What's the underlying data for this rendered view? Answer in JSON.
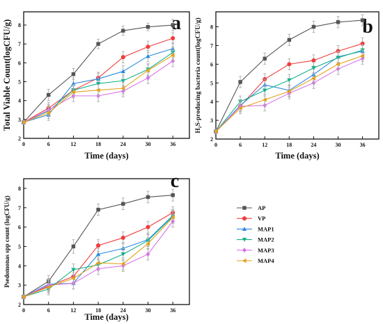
{
  "colors": {
    "AP": "#555555",
    "VP": "#f03c3c",
    "MAP1": "#2a8ae0",
    "MAP2": "#18b08a",
    "MAP3": "#d873e8",
    "MAP4": "#e3a21a"
  },
  "legend": [
    {
      "name": "AP",
      "marker": "square"
    },
    {
      "name": "VP",
      "marker": "circle"
    },
    {
      "name": "MAP1",
      "marker": "triangle-up"
    },
    {
      "name": "MAP2",
      "marker": "triangle-down"
    },
    {
      "name": "MAP3",
      "marker": "diamond"
    },
    {
      "name": "MAP4",
      "marker": "triangle-left"
    }
  ],
  "chart_data": [
    {
      "type": "line",
      "panel_label": "a",
      "xlabel": "Time (days)",
      "ylabel": "Total Viable Count(logCFU/g)",
      "x": [
        0,
        6,
        12,
        18,
        24,
        30,
        36
      ],
      "xticks": [
        "0",
        "6",
        "12",
        "18",
        "24",
        "30",
        "36"
      ],
      "yticks": [
        "2",
        "3",
        "4",
        "5",
        "6",
        "7",
        "8"
      ],
      "xlim": [
        0,
        40
      ],
      "ylim": [
        2,
        8.7
      ],
      "error_bars": true,
      "series": [
        {
          "name": "AP",
          "values": [
            2.85,
            4.3,
            5.4,
            7.0,
            7.7,
            7.9,
            8.0
          ],
          "err": [
            0.1,
            0.3,
            0.3,
            0.25,
            0.25,
            0.2,
            0.3
          ]
        },
        {
          "name": "VP",
          "values": [
            2.85,
            3.6,
            4.55,
            5.2,
            6.3,
            6.85,
            7.3
          ],
          "err": [
            0.1,
            0.3,
            0.3,
            0.3,
            0.3,
            0.3,
            0.3
          ]
        },
        {
          "name": "MAP1",
          "values": [
            2.85,
            3.25,
            4.9,
            5.15,
            5.55,
            6.35,
            6.75
          ],
          "err": [
            0.1,
            0.3,
            0.3,
            0.3,
            0.3,
            0.3,
            0.3
          ]
        },
        {
          "name": "MAP2",
          "values": [
            2.85,
            3.45,
            4.55,
            4.9,
            5.05,
            5.65,
            6.55
          ],
          "err": [
            0.1,
            0.3,
            0.3,
            0.3,
            0.3,
            0.3,
            0.3
          ]
        },
        {
          "name": "MAP3",
          "values": [
            2.85,
            3.5,
            4.25,
            4.25,
            4.5,
            5.2,
            6.1
          ],
          "err": [
            0.1,
            0.3,
            0.3,
            0.3,
            0.3,
            0.3,
            0.3
          ]
        },
        {
          "name": "MAP4",
          "values": [
            2.85,
            3.35,
            4.45,
            4.55,
            4.65,
            5.6,
            6.4
          ],
          "err": [
            0.1,
            0.3,
            0.3,
            0.3,
            0.3,
            0.3,
            0.3
          ]
        }
      ]
    },
    {
      "type": "line",
      "panel_label": "b",
      "xlabel": "Time (days)",
      "ylabel": "H₂S-producing bacteria count(logCFU/g)",
      "x": [
        0,
        6,
        12,
        18,
        24,
        30,
        36
      ],
      "xticks": [
        "0",
        "6",
        "12",
        "18",
        "24",
        "30",
        "36"
      ],
      "yticks": [
        "2",
        "3",
        "4",
        "5",
        "6",
        "7",
        "8"
      ],
      "xlim": [
        0,
        40
      ],
      "ylim": [
        2,
        8.8
      ],
      "error_bars": true,
      "series": [
        {
          "name": "AP",
          "values": [
            2.4,
            5.05,
            6.3,
            7.3,
            8.0,
            8.25,
            8.35
          ],
          "err": [
            0.1,
            0.3,
            0.3,
            0.3,
            0.3,
            0.3,
            0.3
          ]
        },
        {
          "name": "VP",
          "values": [
            2.4,
            3.75,
            5.2,
            6.0,
            6.2,
            6.7,
            7.1
          ],
          "err": [
            0.1,
            0.3,
            0.3,
            0.3,
            0.3,
            0.3,
            0.3
          ]
        },
        {
          "name": "MAP1",
          "values": [
            2.4,
            3.8,
            4.9,
            4.6,
            5.45,
            6.4,
            6.7
          ],
          "err": [
            0.1,
            0.3,
            0.3,
            0.3,
            0.3,
            0.3,
            0.3
          ]
        },
        {
          "name": "MAP2",
          "values": [
            2.4,
            4.0,
            4.6,
            5.15,
            5.8,
            6.35,
            6.75
          ],
          "err": [
            0.1,
            0.3,
            0.3,
            0.3,
            0.3,
            0.3,
            0.3
          ]
        },
        {
          "name": "MAP3",
          "values": [
            2.4,
            3.75,
            3.8,
            4.45,
            5.0,
            5.75,
            6.3
          ],
          "err": [
            0.1,
            0.3,
            0.3,
            0.3,
            0.3,
            0.3,
            0.3
          ]
        },
        {
          "name": "MAP4",
          "values": [
            2.4,
            3.65,
            4.1,
            4.55,
            5.25,
            6.0,
            6.45
          ],
          "err": [
            0.1,
            0.3,
            0.3,
            0.3,
            0.3,
            0.3,
            0.3
          ]
        }
      ]
    },
    {
      "type": "line",
      "panel_label": "c",
      "xlabel": "Time (days)",
      "ylabel": "Psedomonas spp count (logCFU/g)",
      "x": [
        0,
        6,
        12,
        18,
        24,
        30,
        36
      ],
      "xticks": [
        "0",
        "6",
        "12",
        "18",
        "24",
        "30",
        "36"
      ],
      "yticks": [
        "2",
        "3",
        "4",
        "5",
        "6",
        "7",
        "8"
      ],
      "xlim": [
        0,
        40
      ],
      "ylim": [
        2,
        8.5
      ],
      "error_bars": true,
      "series": [
        {
          "name": "AP",
          "values": [
            2.4,
            3.2,
            5.0,
            6.9,
            7.2,
            7.55,
            7.65
          ],
          "err": [
            0.1,
            0.3,
            0.35,
            0.3,
            0.3,
            0.3,
            0.3
          ]
        },
        {
          "name": "VP",
          "values": [
            2.4,
            2.95,
            3.45,
            5.05,
            5.45,
            6.0,
            6.75
          ],
          "err": [
            0.1,
            0.3,
            0.3,
            0.3,
            0.3,
            0.3,
            0.3
          ]
        },
        {
          "name": "MAP1",
          "values": [
            2.4,
            3.05,
            3.1,
            4.6,
            4.9,
            5.35,
            6.6
          ],
          "err": [
            0.1,
            0.3,
            0.3,
            0.3,
            0.3,
            0.3,
            0.3
          ]
        },
        {
          "name": "MAP2",
          "values": [
            2.4,
            2.8,
            3.8,
            4.05,
            4.6,
            5.3,
            6.55
          ],
          "err": [
            0.1,
            0.3,
            0.3,
            0.3,
            0.3,
            0.3,
            0.3
          ]
        },
        {
          "name": "MAP3",
          "values": [
            2.4,
            3.0,
            3.1,
            3.85,
            4.0,
            4.6,
            6.3
          ],
          "err": [
            0.1,
            0.3,
            0.3,
            0.3,
            0.3,
            0.3,
            0.3
          ]
        },
        {
          "name": "MAP4",
          "values": [
            2.4,
            2.9,
            3.35,
            4.15,
            4.1,
            5.15,
            6.5
          ],
          "err": [
            0.1,
            0.3,
            0.3,
            0.3,
            0.3,
            0.3,
            0.3
          ]
        }
      ]
    }
  ]
}
